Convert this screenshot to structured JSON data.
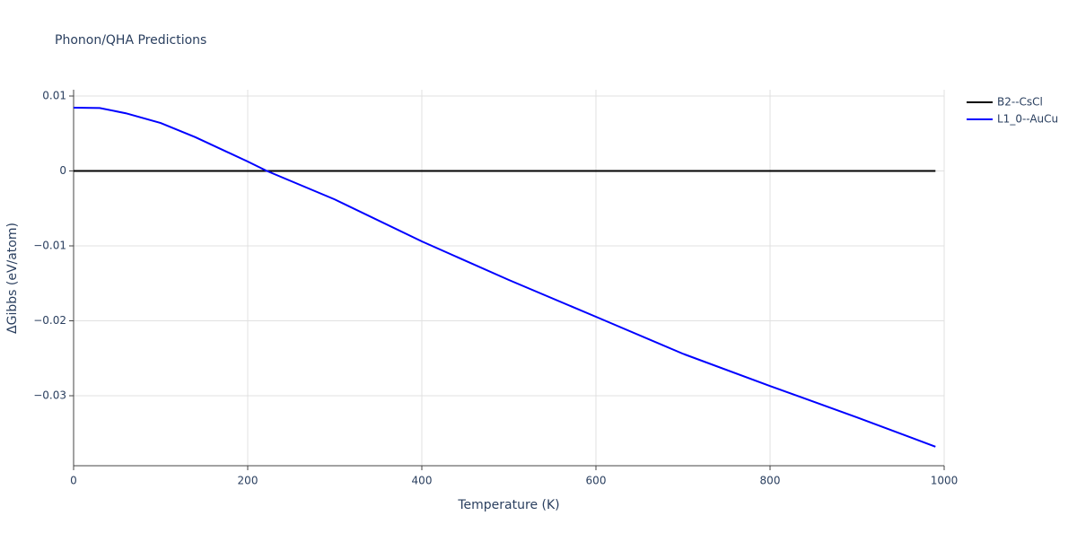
{
  "chart_data": {
    "type": "line",
    "title": "Phonon/QHA Predictions",
    "x_label": "Temperature (K)",
    "y_label": "ΔGibbs (eV/atom)",
    "xlim": [
      0,
      1000
    ],
    "xticks": [
      0,
      200,
      400,
      600,
      800,
      1000
    ],
    "ylim": [
      -0.03934,
      0.01084
    ],
    "yticks": [
      {
        "value": -0.03,
        "label": "−0.03"
      },
      {
        "value": -0.02,
        "label": "−0.02"
      },
      {
        "value": -0.01,
        "label": "−0.01"
      },
      0,
      0.01
    ],
    "grid": true,
    "legend": "right",
    "series": [
      {
        "name": "B2--CsCl",
        "color": "#000000",
        "x": [
          0,
          100,
          200,
          300,
          400,
          500,
          600,
          700,
          800,
          900,
          990
        ],
        "values": [
          0,
          0,
          0,
          0,
          0,
          0,
          0,
          0,
          0,
          0,
          0
        ]
      },
      {
        "name": "L1_0--AuCu",
        "color": "#0000ff",
        "x": [
          0,
          30,
          60,
          100,
          140,
          200,
          222,
          300,
          400,
          500,
          600,
          700,
          800,
          900,
          990
        ],
        "values": [
          0.00844,
          0.0084,
          0.0077,
          0.0064,
          0.0045,
          0.00126,
          0,
          -0.0038,
          -0.0094,
          -0.01455,
          -0.01946,
          -0.0244,
          -0.0287,
          -0.0329,
          -0.0368
        ]
      }
    ]
  }
}
